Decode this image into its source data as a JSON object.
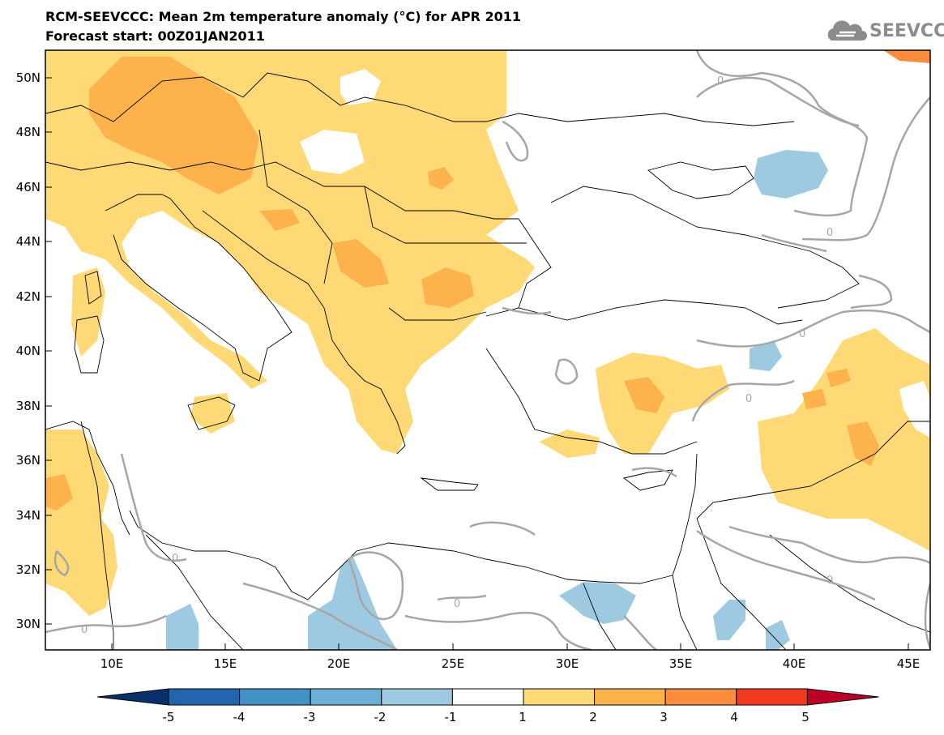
{
  "header": {
    "title": "RCM-SEEVCCC: Mean 2m temperature anomaly (°C) for APR 2011",
    "subtitle": "Forecast start: 00Z01JAN2011",
    "brand": "SEEVCCC",
    "brand_icon": "cloud-logo-icon"
  },
  "map": {
    "lat_labels": [
      "50N",
      "48N",
      "46N",
      "44N",
      "42N",
      "40N",
      "38N",
      "36N",
      "34N",
      "32N",
      "30N"
    ],
    "lon_labels": [
      "10E",
      "15E",
      "20E",
      "25E",
      "30E",
      "35E",
      "40E",
      "45E"
    ],
    "contour_label": "0"
  },
  "colorbar": {
    "labels": [
      "-5",
      "-4",
      "-3",
      "-2",
      "-1",
      "1",
      "2",
      "3",
      "4",
      "5"
    ],
    "colors": [
      "#08306b",
      "#2166ac",
      "#4292c6",
      "#6baed6",
      "#9ecae1",
      "#ffffff",
      "#fed976",
      "#feb24c",
      "#fd8d3c",
      "#f03b20",
      "#bd0026"
    ]
  }
}
